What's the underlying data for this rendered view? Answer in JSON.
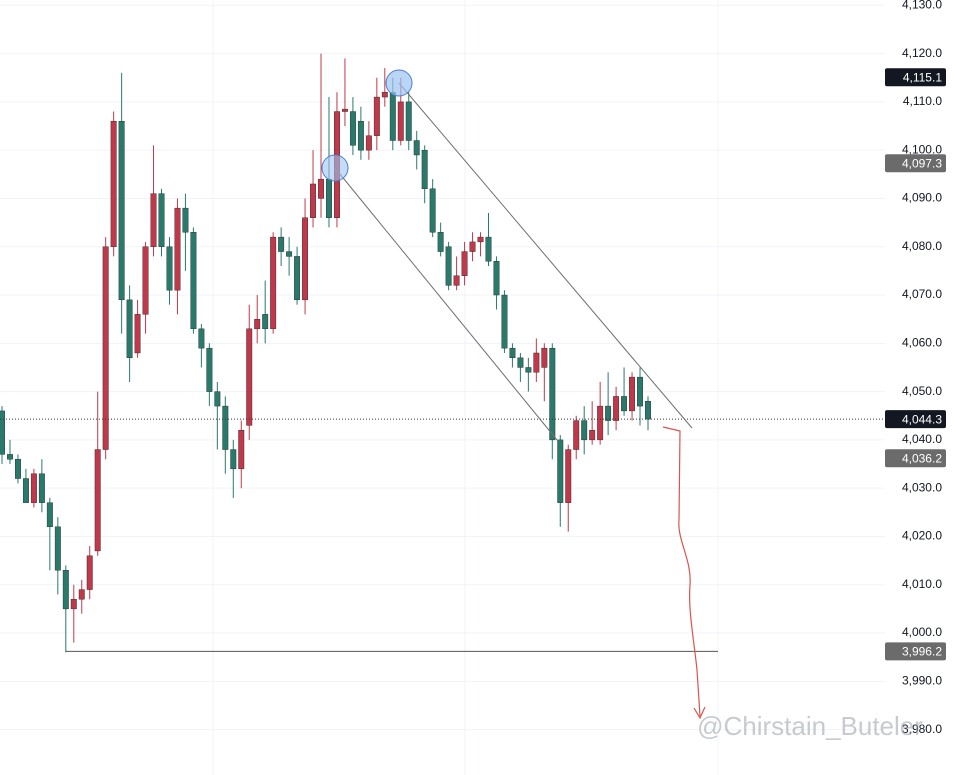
{
  "chart_data": {
    "type": "candlestick",
    "up_color": "#c0394a",
    "down_color": "#2a7a6c",
    "ylim": [
      3970.6,
      4131.1
    ],
    "yticks": [
      {
        "value": 3980,
        "label": "3,980.0"
      },
      {
        "value": 3990,
        "label": "3,990.0"
      },
      {
        "value": 4000,
        "label": "4,000.0"
      },
      {
        "value": 4010,
        "label": "4,010.0"
      },
      {
        "value": 4020,
        "label": "4,020.0"
      },
      {
        "value": 4030,
        "label": "4,030.0"
      },
      {
        "value": 4040,
        "label": "4,040.0"
      },
      {
        "value": 4050,
        "label": "4,050.0"
      },
      {
        "value": 4060,
        "label": "4,060.0"
      },
      {
        "value": 4070,
        "label": "4,070.0"
      },
      {
        "value": 4080,
        "label": "4,080.0"
      },
      {
        "value": 4090,
        "label": "4,090.0"
      },
      {
        "value": 4100,
        "label": "4,100.0"
      },
      {
        "value": 4110,
        "label": "4,110.0"
      },
      {
        "value": 4120,
        "label": "4,120.0"
      },
      {
        "value": 4130,
        "label": "4,130.0"
      }
    ],
    "grid": true,
    "open": [
      4046,
      4037,
      4036,
      4032,
      4027,
      4033,
      4027,
      4022,
      4013,
      4005,
      4007,
      4009,
      4017,
      4038,
      4080,
      4106,
      4069,
      4058,
      4066,
      4080,
      4091,
      4080,
      4071,
      4088,
      4083,
      4063,
      4059,
      4050,
      4047,
      4038,
      4034,
      4043,
      4063,
      4066,
      4063,
      4082,
      4079,
      4078,
      4069,
      4086,
      4090,
      4094,
      4086,
      4108,
      4108,
      4106,
      4100,
      4103,
      4111,
      4112,
      4102,
      4110,
      4102,
      4100,
      4092,
      4083,
      4080,
      4072,
      4074,
      4079,
      4081,
      4082,
      4077,
      4070,
      4059,
      4057,
      4055,
      4054,
      4055,
      4059,
      4040,
      4027,
      4038,
      4044,
      4040,
      4040,
      4047,
      4044,
      4049,
      4046,
      4053,
      4048
    ],
    "high": [
      4047,
      4040,
      4037,
      4034,
      4034,
      4036,
      4028,
      4024,
      4014,
      4010,
      4011,
      4018,
      4050,
      4082,
      4108,
      4116,
      4072,
      4069,
      4081,
      4101,
      4092,
      4082,
      4090,
      4091,
      4084,
      4064,
      4060,
      4052,
      4049,
      4040,
      4044,
      4068,
      4070,
      4073,
      4083,
      4084,
      4082,
      4080,
      4090,
      4100,
      4120,
      4111,
      4112,
      4119,
      4111,
      4109,
      4106,
      4115,
      4117,
      4115,
      4115,
      4112,
      4104,
      4101,
      4094,
      4085,
      4081,
      4078,
      4081,
      4083,
      4083,
      4087,
      4078,
      4071,
      4060,
      4058,
      4057,
      4061,
      4060,
      4060,
      4041,
      4039,
      4045,
      4047,
      4048,
      4052,
      4054,
      4051,
      4055,
      4054,
      4055,
      4049
    ],
    "low": [
      4035,
      4035,
      4031,
      4027,
      4026,
      4025,
      4013,
      4008,
      3996,
      3998,
      4004,
      4007,
      4016,
      4036,
      4078,
      4062,
      4052,
      4057,
      4062,
      4078,
      4078,
      4068,
      4066,
      4075,
      4062,
      4055,
      4047,
      4038,
      4033,
      4028,
      4030,
      4040,
      4060,
      4060,
      4062,
      4076,
      4074,
      4068,
      4066,
      4084,
      4086,
      4084,
      4084,
      4105,
      4099,
      4098,
      4098,
      4100,
      4109,
      4100,
      4101,
      4100,
      4096,
      4089,
      4082,
      4078,
      4071,
      4071,
      4072,
      4077,
      4078,
      4076,
      4067,
      4058,
      4055,
      4052,
      4050,
      4052,
      4048,
      4036,
      4022,
      4021,
      4036,
      4037,
      4039,
      4039,
      4041,
      4042,
      4045,
      4044,
      4043,
      4042
    ],
    "close": [
      4037,
      4036,
      4032,
      4027,
      4033,
      4027,
      4022,
      4013,
      4005,
      4007,
      4009,
      4016,
      4038,
      4080,
      4106,
      4069,
      4057,
      4066,
      4080,
      4091,
      4080,
      4071,
      4088,
      4083,
      4063,
      4059,
      4050,
      4047,
      4038,
      4034,
      4042,
      4063,
      4065,
      4063,
      4082,
      4079,
      4078,
      4069,
      4086,
      4093,
      4094,
      4086,
      4108,
      4108.5,
      4101,
      4100,
      4103,
      4111,
      4112,
      4102,
      4110,
      4102,
      4099,
      4092,
      4083,
      4079,
      4072,
      4074,
      4079,
      4081,
      4082,
      4077,
      4070,
      4059,
      4057,
      4055,
      4054,
      4058,
      4059,
      4040,
      4027,
      4038,
      4044,
      4040,
      4042,
      4047,
      4044,
      4049,
      4046,
      4053,
      4047,
      4044.3
    ],
    "price_labels": [
      {
        "value": 4115.1,
        "label": "4,115.1",
        "color": "#131722"
      },
      {
        "value": 4097.3,
        "label": "4,097.3",
        "color": "#6b6b6b"
      },
      {
        "value": 4044.3,
        "label": "4,044.3",
        "color": "#131722"
      },
      {
        "value": 4036.2,
        "label": "4,036.2",
        "color": "#6b6b6b"
      },
      {
        "value": 3996.2,
        "label": "3,996.2",
        "color": "#6b6b6b"
      }
    ],
    "watermark": "@Chirstain_Buteler"
  }
}
